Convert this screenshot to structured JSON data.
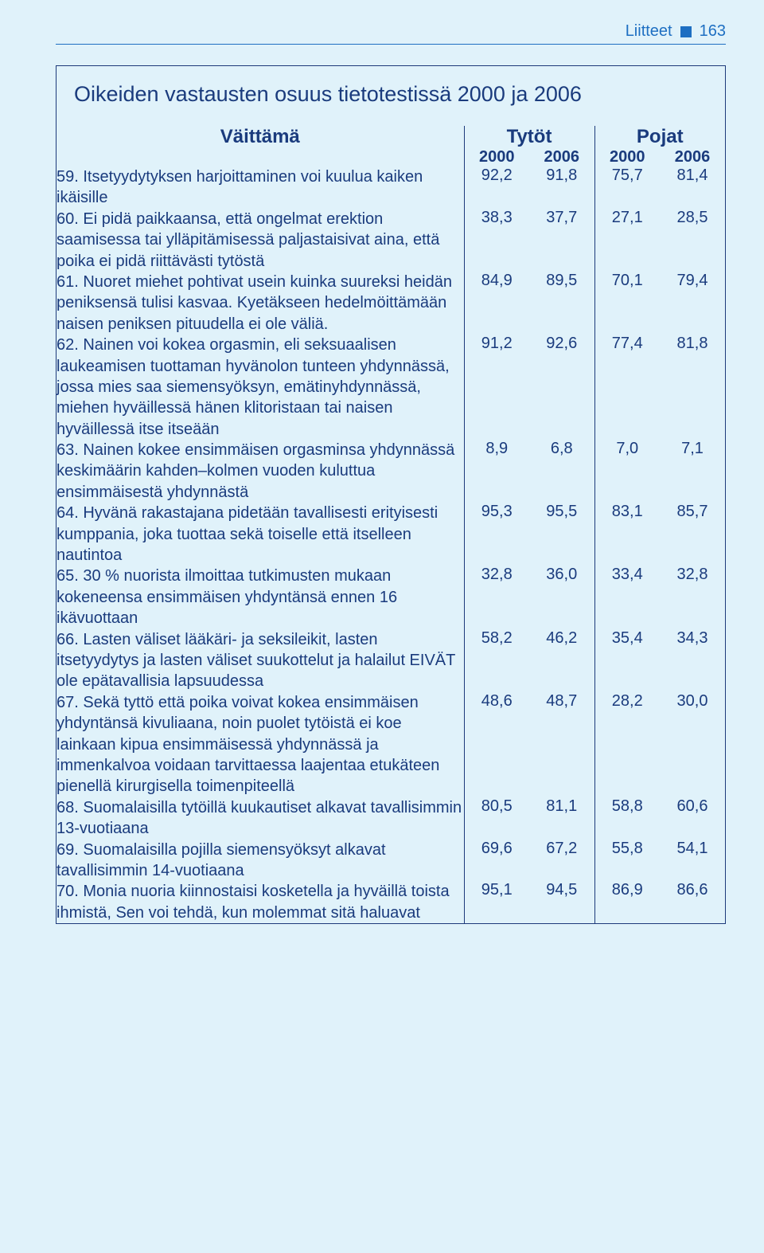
{
  "colors": {
    "page_bg": "#e0f2fa",
    "text": "#1a3b7d",
    "accent": "#1e6fc2",
    "border": "#1d3a7a"
  },
  "typography": {
    "body_fontsize_pt": 15,
    "title_fontsize_pt": 20,
    "header_fontsize_pt": 18,
    "font_family": "Arial"
  },
  "runhead": {
    "label": "Liitteet",
    "page": "163"
  },
  "box": {
    "title": "Oikeiden vastausten osuus tietotestissä 2000 ja 2006",
    "col_desc": "Väittämä",
    "groups": [
      {
        "label": "Tytöt",
        "years": [
          "2000",
          "2006"
        ]
      },
      {
        "label": "Pojat",
        "years": [
          "2000",
          "2006"
        ]
      }
    ],
    "rows": [
      {
        "text": "59. Itsetyydytyksen harjoittaminen voi kuulua kaiken ikäisille",
        "vals": [
          "92,2",
          "91,8",
          "75,7",
          "81,4"
        ]
      },
      {
        "text": "60. Ei pidä paikkaansa, että ongelmat erektion saamisessa tai ylläpitämisessä paljastaisivat aina, että poika ei pidä riittävästi tytöstä",
        "vals": [
          "38,3",
          "37,7",
          "27,1",
          "28,5"
        ]
      },
      {
        "text": "61. Nuoret miehet pohtivat usein kuinka suureksi heidän peniksensä tulisi kasvaa. Kyetäkseen hedelmöittämään naisen peniksen pituudella ei ole väliä.",
        "vals": [
          "84,9",
          "89,5",
          "70,1",
          "79,4"
        ]
      },
      {
        "text": "62. Nainen voi kokea orgasmin, eli seksuaalisen laukeamisen tuottaman hyvänolon tunteen yhdynnässä, jossa mies saa siemensyöksyn, emätinyhdynnässä, miehen hyväillessä hänen klitoristaan tai naisen hyväillessä itse itseään",
        "vals": [
          "91,2",
          "92,6",
          "77,4",
          "81,8"
        ]
      },
      {
        "text": "63. Nainen kokee ensimmäisen orgasminsa yhdynnässä keskimäärin kahden–kolmen vuoden kuluttua ensimmäisestä yhdynnästä",
        "vals": [
          "8,9",
          "6,8",
          "7,0",
          "7,1"
        ]
      },
      {
        "text": "64. Hyvänä rakastajana pidetään tavallisesti erityisesti kumppania, joka tuottaa sekä toiselle että itselleen nautintoa",
        "vals": [
          "95,3",
          "95,5",
          "83,1",
          "85,7"
        ]
      },
      {
        "text": "65. 30 % nuorista ilmoittaa tutkimusten mukaan kokeneensa ensimmäisen yhdyntänsä ennen 16 ikävuottaan",
        "vals": [
          "32,8",
          "36,0",
          "33,4",
          "32,8"
        ]
      },
      {
        "text": "66. Lasten väliset lääkäri- ja seksileikit, lasten itsetyydytys ja lasten väliset suukottelut ja halailut EIVÄT ole epätavallisia lapsuudessa",
        "vals": [
          "58,2",
          "46,2",
          "35,4",
          "34,3"
        ]
      },
      {
        "text": "67. Sekä tyttö että poika voivat kokea ensimmäisen yhdyntänsä kivuliaana, noin puolet tytöistä ei koe lainkaan kipua ensimmäisessä yhdynnässä ja immenkalvoa voidaan tarvittaessa laajentaa etukäteen pienellä kirurgisella toimenpiteellä",
        "vals": [
          "48,6",
          "48,7",
          "28,2",
          "30,0"
        ]
      },
      {
        "text": "68. Suomalaisilla tytöillä kuukautiset alkavat tavallisimmin 13-vuotiaana",
        "vals": [
          "80,5",
          "81,1",
          "58,8",
          "60,6"
        ]
      },
      {
        "text": "69. Suomalaisilla pojilla siemensyöksyt alkavat tavallisimmin 14-vuotiaana",
        "vals": [
          "69,6",
          "67,2",
          "55,8",
          "54,1"
        ]
      },
      {
        "text": "70. Monia nuoria kiinnostaisi kosketella ja hyväillä toista ihmistä, Sen voi tehdä, kun molemmat sitä haluavat",
        "vals": [
          "95,1",
          "94,5",
          "86,9",
          "86,6"
        ]
      }
    ]
  }
}
